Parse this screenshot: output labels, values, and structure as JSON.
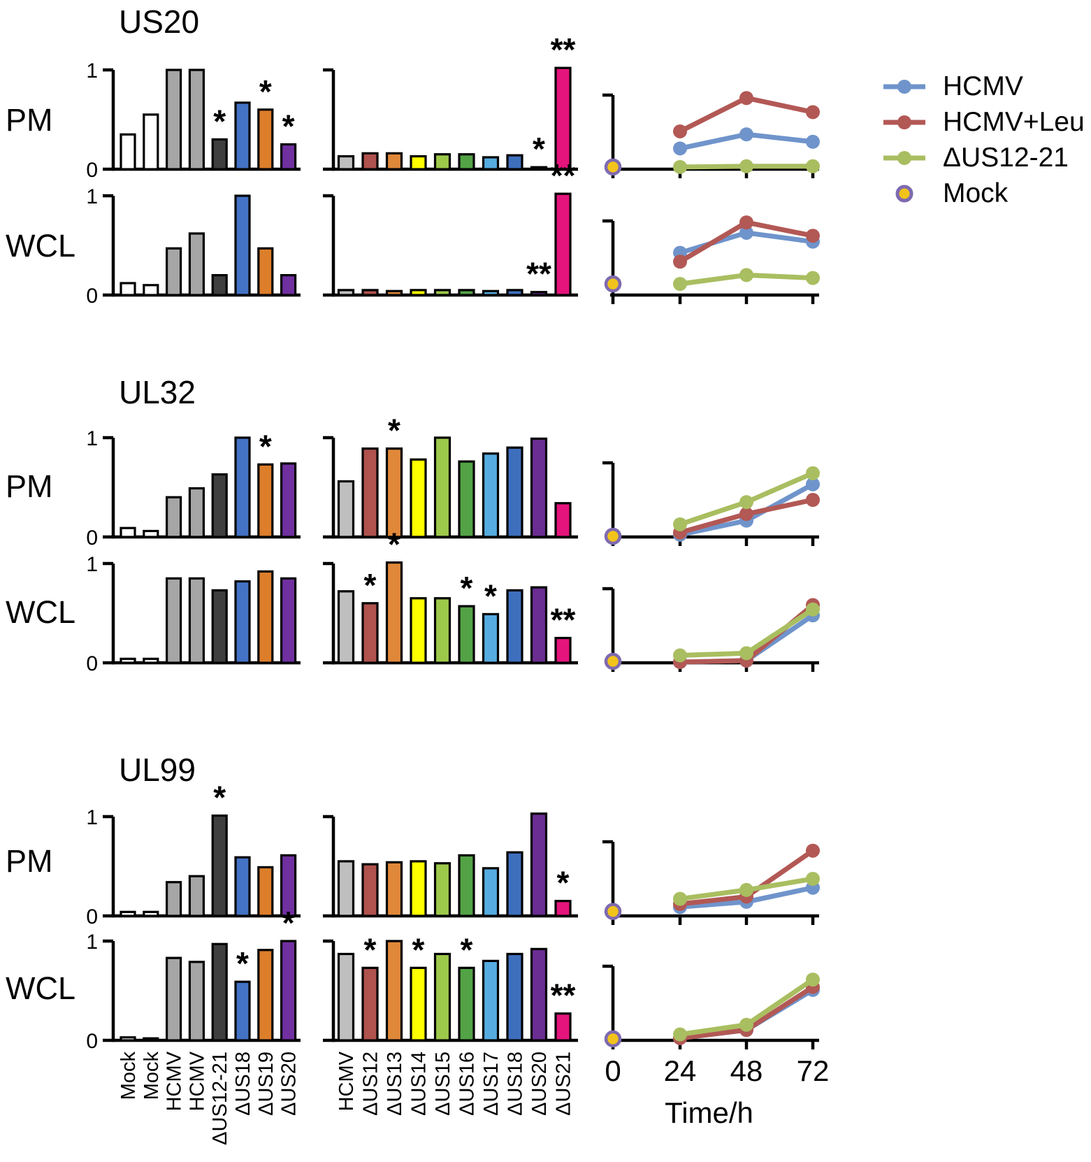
{
  "sections": [
    {
      "title": "US20",
      "rows": [
        {
          "label": "PM"
        },
        {
          "label": "WCL"
        }
      ]
    },
    {
      "title": "UL32",
      "rows": [
        {
          "label": "PM"
        },
        {
          "label": "WCL"
        }
      ]
    },
    {
      "title": "UL99",
      "rows": [
        {
          "label": "PM"
        },
        {
          "label": "WCL"
        }
      ]
    }
  ],
  "legend": {
    "items": [
      {
        "label": "HCMV",
        "color": "#6f94cb",
        "marker": "line-circle"
      },
      {
        "label": "HCMV+Leu",
        "color": "#b25855",
        "marker": "line-circle"
      },
      {
        "label": "ΔUS12-21",
        "color": "#a9be60",
        "marker": "line-circle"
      },
      {
        "label": "Mock",
        "color": "#f2c31a",
        "ring": "#7e6ab0",
        "marker": "ring-circle"
      }
    ]
  },
  "palettes": {
    "left_bars": [
      "#ffffff",
      "#ffffff",
      "#a6a6a6",
      "#a6a6a6",
      "#3f3f3f",
      "#4472c4",
      "#dd7e2b",
      "#7030a0"
    ],
    "mid_bars": [
      "#bfbfbf",
      "#b0524e",
      "#e0883a",
      "#ffff00",
      "#9dc94b",
      "#53a346",
      "#56ace0",
      "#3e6fbd",
      "#6a2d91",
      "#e5147c"
    ]
  },
  "time_axis": {
    "ticks": [
      "0",
      "24",
      "48",
      "72"
    ],
    "label": "Time/h"
  },
  "chart_data": [
    {
      "id": "us20-pm-left",
      "section": "US20",
      "row": "PM",
      "slot": "left",
      "type": "bar",
      "ylim": [
        0,
        1
      ],
      "yticklabels": [
        "1",
        "0"
      ],
      "categories": [
        "Mock",
        "Mock",
        "HCMV",
        "HCMV",
        "ΔUS12-21",
        "ΔUS18",
        "ΔUS19",
        "ΔUS20"
      ],
      "values": [
        0.35,
        0.55,
        1.0,
        1.0,
        0.3,
        0.67,
        0.6,
        0.25
      ],
      "sig": [
        "",
        "",
        "",
        "",
        "*",
        "",
        "*",
        "*"
      ],
      "palette": "left_bars",
      "show_xticklabels": false
    },
    {
      "id": "us20-pm-mid",
      "section": "US20",
      "row": "PM",
      "slot": "mid",
      "type": "bar",
      "ylim": [
        0,
        1
      ],
      "categories": [
        "HCMV",
        "ΔUS12",
        "ΔUS13",
        "ΔUS14",
        "ΔUS15",
        "ΔUS16",
        "ΔUS17",
        "ΔUS18",
        "ΔUS20",
        "ΔUS21"
      ],
      "values": [
        0.13,
        0.16,
        0.16,
        0.13,
        0.15,
        0.15,
        0.12,
        0.14,
        0.02,
        1.02
      ],
      "sig": [
        "",
        "",
        "",
        "",
        "",
        "",
        "",
        "",
        "*",
        "**"
      ],
      "palette": "mid_bars",
      "show_xticklabels": false
    },
    {
      "id": "us20-pm-line",
      "section": "US20",
      "row": "PM",
      "slot": "line",
      "type": "line",
      "ylim": [
        0,
        1
      ],
      "x": [
        24,
        48,
        72
      ],
      "series": [
        {
          "name": "HCMV",
          "color": "#6f94cb",
          "values": [
            0.28,
            0.47,
            0.37
          ]
        },
        {
          "name": "HCMV+Leu",
          "color": "#b25855",
          "values": [
            0.51,
            0.96,
            0.77
          ]
        },
        {
          "name": "ΔUS12-21",
          "color": "#a9be60",
          "values": [
            0.03,
            0.04,
            0.04
          ]
        }
      ],
      "mock": {
        "x": 0,
        "value": 0.03
      }
    },
    {
      "id": "us20-wcl-left",
      "section": "US20",
      "row": "WCL",
      "slot": "left",
      "type": "bar",
      "ylim": [
        0,
        1
      ],
      "yticklabels": [
        "1",
        "0"
      ],
      "categories": [
        "Mock",
        "Mock",
        "HCMV",
        "HCMV",
        "ΔUS12-21",
        "ΔUS18",
        "ΔUS19",
        "ΔUS20"
      ],
      "values": [
        0.12,
        0.1,
        0.47,
        0.62,
        0.2,
        1.0,
        0.47,
        0.2
      ],
      "sig": [
        "",
        "",
        "",
        "",
        "",
        "",
        "",
        ""
      ],
      "palette": "left_bars",
      "show_xticklabels": false
    },
    {
      "id": "us20-wcl-mid",
      "section": "US20",
      "row": "WCL",
      "slot": "mid",
      "type": "bar",
      "ylim": [
        0,
        1
      ],
      "categories": [
        "HCMV",
        "ΔUS12",
        "ΔUS13",
        "ΔUS14",
        "ΔUS15",
        "ΔUS16",
        "ΔUS17",
        "ΔUS18",
        "ΔUS20",
        "ΔUS21"
      ],
      "values": [
        0.05,
        0.05,
        0.04,
        0.05,
        0.05,
        0.05,
        0.04,
        0.05,
        0.03,
        1.02
      ],
      "sig": [
        "",
        "",
        "",
        "",
        "",
        "",
        "",
        "",
        "**",
        "**"
      ],
      "palette": "mid_bars",
      "show_xticklabels": false
    },
    {
      "id": "us20-wcl-line",
      "section": "US20",
      "row": "WCL",
      "slot": "line",
      "type": "line",
      "ylim": [
        0,
        1
      ],
      "x": [
        24,
        48,
        72
      ],
      "series": [
        {
          "name": "HCMV",
          "color": "#6f94cb",
          "values": [
            0.57,
            0.84,
            0.72
          ]
        },
        {
          "name": "HCMV+Leu",
          "color": "#b25855",
          "values": [
            0.45,
            0.98,
            0.8
          ]
        },
        {
          "name": "ΔUS12-21",
          "color": "#a9be60",
          "values": [
            0.15,
            0.27,
            0.23
          ]
        }
      ],
      "mock": {
        "x": 0,
        "value": 0.15
      }
    },
    {
      "id": "ul32-pm-left",
      "section": "UL32",
      "row": "PM",
      "slot": "left",
      "type": "bar",
      "ylim": [
        0,
        1
      ],
      "yticklabels": [
        "1",
        "0"
      ],
      "categories": [
        "Mock",
        "Mock",
        "HCMV",
        "HCMV",
        "ΔUS12-21",
        "ΔUS18",
        "ΔUS19",
        "ΔUS20"
      ],
      "values": [
        0.09,
        0.06,
        0.4,
        0.49,
        0.63,
        1.0,
        0.73,
        0.74
      ],
      "sig": [
        "",
        "",
        "",
        "",
        "",
        "",
        "*",
        ""
      ],
      "palette": "left_bars",
      "show_xticklabels": false
    },
    {
      "id": "ul32-pm-mid",
      "section": "UL32",
      "row": "PM",
      "slot": "mid",
      "type": "bar",
      "ylim": [
        0,
        1
      ],
      "categories": [
        "HCMV",
        "ΔUS12",
        "ΔUS13",
        "ΔUS14",
        "ΔUS15",
        "ΔUS16",
        "ΔUS17",
        "ΔUS18",
        "ΔUS20",
        "ΔUS21"
      ],
      "values": [
        0.56,
        0.89,
        0.89,
        0.78,
        1.0,
        0.76,
        0.84,
        0.9,
        0.99,
        0.34
      ],
      "sig": [
        "",
        "",
        "*",
        "",
        "",
        "",
        "",
        "",
        "",
        ""
      ],
      "palette": "mid_bars",
      "show_xticklabels": false
    },
    {
      "id": "ul32-pm-line",
      "section": "UL32",
      "row": "PM",
      "slot": "line",
      "type": "line",
      "ylim": [
        0,
        1
      ],
      "x": [
        24,
        48,
        72
      ],
      "series": [
        {
          "name": "HCMV",
          "color": "#6f94cb",
          "values": [
            0.03,
            0.22,
            0.71
          ]
        },
        {
          "name": "HCMV+Leu",
          "color": "#b25855",
          "values": [
            0.06,
            0.31,
            0.5
          ]
        },
        {
          "name": "ΔUS12-21",
          "color": "#a9be60",
          "values": [
            0.17,
            0.47,
            0.86
          ]
        }
      ],
      "mock": {
        "x": 0,
        "value": 0.01
      }
    },
    {
      "id": "ul32-wcl-left",
      "section": "UL32",
      "row": "WCL",
      "slot": "left",
      "type": "bar",
      "ylim": [
        0,
        1
      ],
      "yticklabels": [
        "1",
        "0"
      ],
      "categories": [
        "Mock",
        "Mock",
        "HCMV",
        "HCMV",
        "ΔUS12-21",
        "ΔUS18",
        "ΔUS19",
        "ΔUS20"
      ],
      "values": [
        0.04,
        0.04,
        0.85,
        0.85,
        0.73,
        0.82,
        0.92,
        0.85
      ],
      "sig": [
        "",
        "",
        "",
        "",
        "",
        "",
        "",
        ""
      ],
      "palette": "left_bars",
      "show_xticklabels": false
    },
    {
      "id": "ul32-wcl-mid",
      "section": "UL32",
      "row": "WCL",
      "slot": "mid",
      "type": "bar",
      "ylim": [
        0,
        1
      ],
      "categories": [
        "HCMV",
        "ΔUS12",
        "ΔUS13",
        "ΔUS14",
        "ΔUS15",
        "ΔUS16",
        "ΔUS17",
        "ΔUS18",
        "ΔUS20",
        "ΔUS21"
      ],
      "values": [
        0.72,
        0.6,
        1.01,
        0.65,
        0.65,
        0.57,
        0.49,
        0.73,
        0.76,
        0.25
      ],
      "sig": [
        "",
        "*",
        "*",
        "",
        "",
        "*",
        "*",
        "",
        "",
        "**"
      ],
      "palette": "mid_bars",
      "show_xticklabels": false
    },
    {
      "id": "ul32-wcl-line",
      "section": "UL32",
      "row": "WCL",
      "slot": "line",
      "type": "line",
      "ylim": [
        0,
        1
      ],
      "x": [
        24,
        48,
        72
      ],
      "series": [
        {
          "name": "HCMV",
          "color": "#6f94cb",
          "values": [
            0.01,
            0.03,
            0.64
          ]
        },
        {
          "name": "HCMV+Leu",
          "color": "#b25855",
          "values": [
            0.01,
            0.03,
            0.78
          ]
        },
        {
          "name": "ΔUS12-21",
          "color": "#a9be60",
          "values": [
            0.1,
            0.13,
            0.72
          ]
        }
      ],
      "mock": {
        "x": 0,
        "value": 0.02
      }
    },
    {
      "id": "ul99-pm-left",
      "section": "UL99",
      "row": "PM",
      "slot": "left",
      "type": "bar",
      "ylim": [
        0,
        1
      ],
      "yticklabels": [
        "1",
        "0"
      ],
      "categories": [
        "Mock",
        "Mock",
        "HCMV",
        "HCMV",
        "ΔUS12-21",
        "ΔUS18",
        "ΔUS19",
        "ΔUS20"
      ],
      "values": [
        0.04,
        0.04,
        0.34,
        0.4,
        1.01,
        0.59,
        0.49,
        0.61
      ],
      "sig": [
        "",
        "",
        "",
        "",
        "*",
        "",
        "",
        ""
      ],
      "palette": "left_bars",
      "show_xticklabels": false
    },
    {
      "id": "ul99-pm-mid",
      "section": "UL99",
      "row": "PM",
      "slot": "mid",
      "type": "bar",
      "ylim": [
        0,
        1
      ],
      "categories": [
        "HCMV",
        "ΔUS12",
        "ΔUS13",
        "ΔUS14",
        "ΔUS15",
        "ΔUS16",
        "ΔUS17",
        "ΔUS18",
        "ΔUS20",
        "ΔUS21"
      ],
      "values": [
        0.55,
        0.52,
        0.54,
        0.55,
        0.53,
        0.61,
        0.48,
        0.64,
        1.03,
        0.15
      ],
      "sig": [
        "",
        "",
        "",
        "",
        "",
        "",
        "",
        "",
        "",
        "*"
      ],
      "palette": "mid_bars",
      "show_xticklabels": false
    },
    {
      "id": "ul99-pm-line",
      "section": "UL99",
      "row": "PM",
      "slot": "line",
      "type": "line",
      "ylim": [
        0,
        1
      ],
      "x": [
        24,
        48,
        72
      ],
      "series": [
        {
          "name": "HCMV",
          "color": "#6f94cb",
          "values": [
            0.12,
            0.19,
            0.38
          ]
        },
        {
          "name": "HCMV+Leu",
          "color": "#b25855",
          "values": [
            0.16,
            0.26,
            0.88
          ]
        },
        {
          "name": "ΔUS12-21",
          "color": "#a9be60",
          "values": [
            0.23,
            0.35,
            0.5
          ]
        }
      ],
      "mock": {
        "x": 0,
        "value": 0.06
      }
    },
    {
      "id": "ul99-wcl-left",
      "section": "UL99",
      "row": "WCL",
      "slot": "left",
      "type": "bar",
      "ylim": [
        0,
        1
      ],
      "yticklabels": [
        "1",
        "0"
      ],
      "categories": [
        "Mock",
        "Mock",
        "HCMV",
        "HCMV",
        "ΔUS12-21",
        "ΔUS18",
        "ΔUS19",
        "ΔUS20"
      ],
      "values": [
        0.03,
        0.02,
        0.83,
        0.79,
        0.97,
        0.59,
        0.91,
        1.0
      ],
      "sig": [
        "",
        "",
        "",
        "",
        "",
        "*",
        "",
        "*"
      ],
      "palette": "left_bars",
      "show_xticklabels": true
    },
    {
      "id": "ul99-wcl-mid",
      "section": "UL99",
      "row": "WCL",
      "slot": "mid",
      "type": "bar",
      "ylim": [
        0,
        1
      ],
      "categories": [
        "HCMV",
        "ΔUS12",
        "ΔUS13",
        "ΔUS14",
        "ΔUS15",
        "ΔUS16",
        "ΔUS17",
        "ΔUS18",
        "ΔUS20",
        "ΔUS21"
      ],
      "values": [
        0.87,
        0.73,
        1.0,
        0.73,
        0.87,
        0.73,
        0.8,
        0.87,
        0.92,
        0.27
      ],
      "sig": [
        "",
        "*",
        "",
        "*",
        "",
        "*",
        "",
        "",
        "",
        "**"
      ],
      "palette": "mid_bars",
      "show_xticklabels": true
    },
    {
      "id": "ul99-wcl-line",
      "section": "UL99",
      "row": "WCL",
      "slot": "line",
      "type": "line",
      "ylim": [
        0,
        1
      ],
      "x": [
        24,
        48,
        72
      ],
      "series": [
        {
          "name": "HCMV",
          "color": "#6f94cb",
          "values": [
            0.03,
            0.14,
            0.68
          ]
        },
        {
          "name": "HCMV+Leu",
          "color": "#b25855",
          "values": [
            0.03,
            0.14,
            0.72
          ]
        },
        {
          "name": "ΔUS12-21",
          "color": "#a9be60",
          "values": [
            0.08,
            0.21,
            0.82
          ]
        }
      ],
      "mock": {
        "x": 0,
        "value": 0.02
      },
      "xticklabels": [
        "0",
        "24",
        "48",
        "72"
      ],
      "xlabel": "Time/h"
    }
  ]
}
